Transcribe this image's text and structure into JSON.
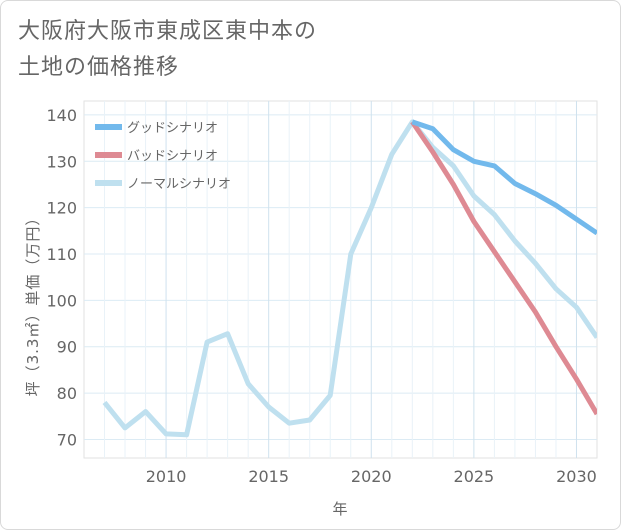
{
  "title": {
    "line1": "大阪府大阪市東成区東中本の",
    "line2": "土地の価格推移"
  },
  "chart_data": {
    "type": "line",
    "xlabel": "年",
    "ylabel": "坪（3.3㎡）単価（万円）",
    "xlim": [
      2006,
      2031
    ],
    "ylim": [
      66,
      143
    ],
    "x_ticks": [
      2010,
      2015,
      2020,
      2025,
      2030
    ],
    "y_ticks": [
      70,
      80,
      90,
      100,
      110,
      120,
      130,
      140
    ],
    "grid": true,
    "legend_position": "top-left",
    "series": [
      {
        "name": "グッドシナリオ",
        "color": "#72b9ec",
        "x": [
          2022,
          2023,
          2024,
          2025,
          2026,
          2027,
          2028,
          2029,
          2030,
          2031
        ],
        "values": [
          138.5,
          137,
          132.5,
          130,
          129,
          125.2,
          123,
          120.5,
          117.5,
          114.5
        ]
      },
      {
        "name": "バッドシナリオ",
        "color": "#de8a93",
        "x": [
          2022,
          2023,
          2024,
          2025,
          2026,
          2027,
          2028,
          2029,
          2030,
          2031
        ],
        "values": [
          138.5,
          132,
          125,
          117,
          110.5,
          104,
          97.5,
          90,
          83,
          75.5
        ]
      },
      {
        "name": "ノーマルシナリオ",
        "color": "#bfe0ef",
        "x": [
          2007,
          2008,
          2009,
          2010,
          2011,
          2012,
          2013,
          2014,
          2015,
          2016,
          2017,
          2018,
          2019,
          2020,
          2021,
          2022,
          2023,
          2024,
          2025,
          2026,
          2027,
          2028,
          2029,
          2030,
          2031
        ],
        "values": [
          78,
          72.5,
          76,
          71.2,
          71,
          91,
          92.8,
          82,
          77,
          73.5,
          74.2,
          79.5,
          110,
          120,
          131.5,
          138.5,
          133,
          129,
          122.5,
          118.5,
          112.8,
          108,
          102.5,
          98.5,
          92
        ]
      }
    ]
  }
}
